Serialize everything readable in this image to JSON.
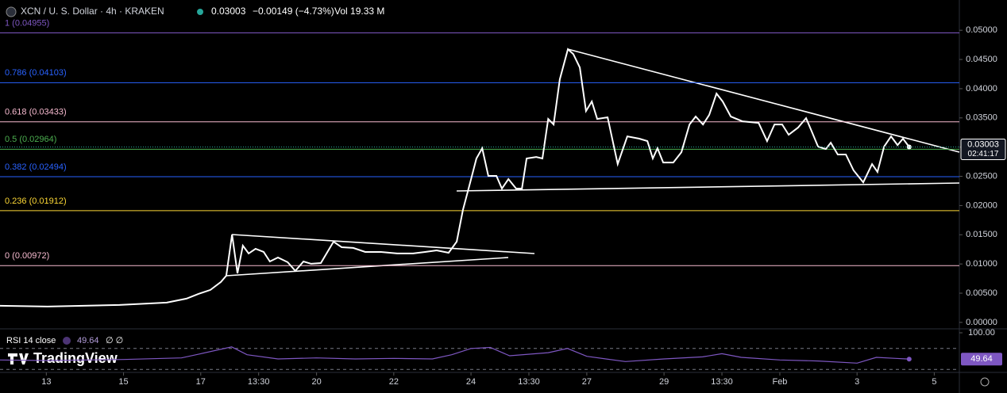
{
  "chart_data": [
    {
      "type": "line",
      "title": "XCN / U. S. Dollar · 4h · KRAKEN",
      "last_price": "0.03003",
      "change": "−0.00149 (−4.73%)",
      "volume": "Vol 19.33 M",
      "countdown": "02:41:17",
      "watermark": "TradingView",
      "xlim": [
        11.8,
        36.65
      ],
      "ylim": [
        -0.0011,
        0.0545
      ],
      "xticks": [
        13,
        15,
        17,
        {
          "value": 18.5,
          "label": "13:30"
        },
        20,
        22,
        24,
        {
          "value": 25.5,
          "label": "13:30"
        },
        27,
        29,
        {
          "value": 30.5,
          "label": "13:30"
        },
        {
          "value": 32,
          "label": "Feb"
        },
        {
          "value": 34,
          "label": "3"
        },
        {
          "value": 36,
          "label": "5"
        }
      ],
      "yticks": [
        {
          "value": 0.05,
          "label": "0.05000"
        },
        {
          "value": 0.045,
          "label": "0.04500"
        },
        {
          "value": 0.04,
          "label": "0.04000"
        },
        {
          "value": 0.035,
          "label": "0.03500"
        },
        {
          "value": 0.03,
          "label": "0.03000"
        },
        {
          "value": 0.025,
          "label": "0.02500"
        },
        {
          "value": 0.02,
          "label": "0.02000"
        },
        {
          "value": 0.015,
          "label": "0.01500"
        },
        {
          "value": 0.01,
          "label": "0.01000"
        },
        {
          "value": 0.005,
          "label": "0.00500"
        },
        {
          "value": 0,
          "label": "0.00000"
        }
      ],
      "levels": [
        {
          "label": "1 (0.04955)",
          "value": 0.04955,
          "color": "#7e57c2"
        },
        {
          "label": "0.786 (0.04103)",
          "value": 0.04103,
          "color": "#2962ff"
        },
        {
          "label": "0.618 (0.03433)",
          "value": 0.03433,
          "color": "#f8bbd0"
        },
        {
          "label": "0.5 (0.02964)",
          "value": 0.02964,
          "color": "#4caf50"
        },
        {
          "label": "0.382 (0.02494)",
          "value": 0.02494,
          "color": "#2962ff"
        },
        {
          "label": "0.236 (0.01912)",
          "value": 0.01912,
          "color": "#fdd835"
        },
        {
          "label": "0 (0.00972)",
          "value": 0.00972,
          "color": "#f8bbd0"
        }
      ],
      "x": [
        11.8,
        13.03,
        14.89,
        16.12,
        16.63,
        16.94,
        17.25,
        17.52,
        17.66,
        17.81,
        17.95,
        18.09,
        18.24,
        18.42,
        18.63,
        18.79,
        19.0,
        19.25,
        19.45,
        19.66,
        19.86,
        20.11,
        20.44,
        20.65,
        20.95,
        21.26,
        21.67,
        22.09,
        22.5,
        22.81,
        23.11,
        23.42,
        23.63,
        23.79,
        23.98,
        24.14,
        24.29,
        24.45,
        24.66,
        24.8,
        24.97,
        25.17,
        25.32,
        25.44,
        25.69,
        25.85,
        26.0,
        26.14,
        26.3,
        26.51,
        26.65,
        26.82,
        26.98,
        27.13,
        27.27,
        27.54,
        27.8,
        28.05,
        28.36,
        28.57,
        28.71,
        28.83,
        28.98,
        29.24,
        29.45,
        29.66,
        29.82,
        30.01,
        30.17,
        30.36,
        30.52,
        30.73,
        31.03,
        31.45,
        31.67,
        31.86,
        32.06,
        32.23,
        32.47,
        32.68,
        32.82,
        32.99,
        33.19,
        33.32,
        33.5,
        33.71,
        33.91,
        34.16,
        34.39,
        34.53,
        34.7,
        34.88,
        35.05,
        35.19,
        35.35
      ],
      "series": [
        {
          "name": "XCN/USD",
          "color": "#ffffff",
          "values": [
            0.00285,
            0.00271,
            0.00298,
            0.00339,
            0.00407,
            0.00488,
            0.00556,
            0.00691,
            0.00799,
            0.01504,
            0.0084,
            0.01314,
            0.01179,
            0.0126,
            0.01206,
            0.01043,
            0.01111,
            0.0103,
            0.00881,
            0.01043,
            0.01003,
            0.01016,
            0.01382,
            0.01287,
            0.01274,
            0.01206,
            0.01206,
            0.01179,
            0.01179,
            0.01206,
            0.01233,
            0.01192,
            0.01382,
            0.01924,
            0.02398,
            0.02805,
            0.02981,
            0.02507,
            0.02507,
            0.0229,
            0.02453,
            0.0229,
            0.0229,
            0.02805,
            0.02832,
            0.02805,
            0.03482,
            0.03388,
            0.0416,
            0.04675,
            0.04593,
            0.04363,
            0.03618,
            0.0378,
            0.03482,
            0.03509,
            0.0271,
            0.03184,
            0.03144,
            0.03103,
            0.02805,
            0.02981,
            0.02737,
            0.02737,
            0.02913,
            0.03388,
            0.03523,
            0.03388,
            0.0355,
            0.03916,
            0.0378,
            0.03523,
            0.03442,
            0.03415,
            0.03103,
            0.03388,
            0.03388,
            0.03211,
            0.03333,
            0.03496,
            0.03279,
            0.03008,
            0.02967,
            0.03076,
            0.02873,
            0.02873,
            0.02602,
            0.02398,
            0.0271,
            0.02575,
            0.03008,
            0.03184,
            0.03035,
            0.03144,
            0.03003
          ]
        }
      ]
    },
    {
      "type": "line",
      "title": "RSI 14 close",
      "value_label": "49.64",
      "extra": "∅ ∅",
      "xlim": [
        11.8,
        36.65
      ],
      "ylim": [
        0,
        100
      ],
      "yticks": [
        {
          "value": 100,
          "label": "100.00"
        }
      ],
      "bands": [
        70,
        30
      ],
      "x": [
        11.8,
        13,
        15,
        16.5,
        17,
        17.8,
        18.2,
        19,
        20,
        21,
        22,
        23,
        23.5,
        24,
        24.5,
        25,
        26,
        26.5,
        27,
        28,
        29,
        30,
        30.5,
        31,
        32,
        33,
        34,
        34.5,
        35,
        35.35
      ],
      "series": [
        {
          "name": "RSI",
          "color": "#7e57c2",
          "values": [
            48,
            47,
            49,
            52,
            60,
            73,
            58,
            50,
            52,
            50,
            51,
            50,
            58,
            70,
            72,
            56,
            62,
            70,
            55,
            45,
            50,
            54,
            60,
            53,
            48,
            46,
            42,
            53,
            51,
            49.64
          ]
        }
      ]
    }
  ]
}
